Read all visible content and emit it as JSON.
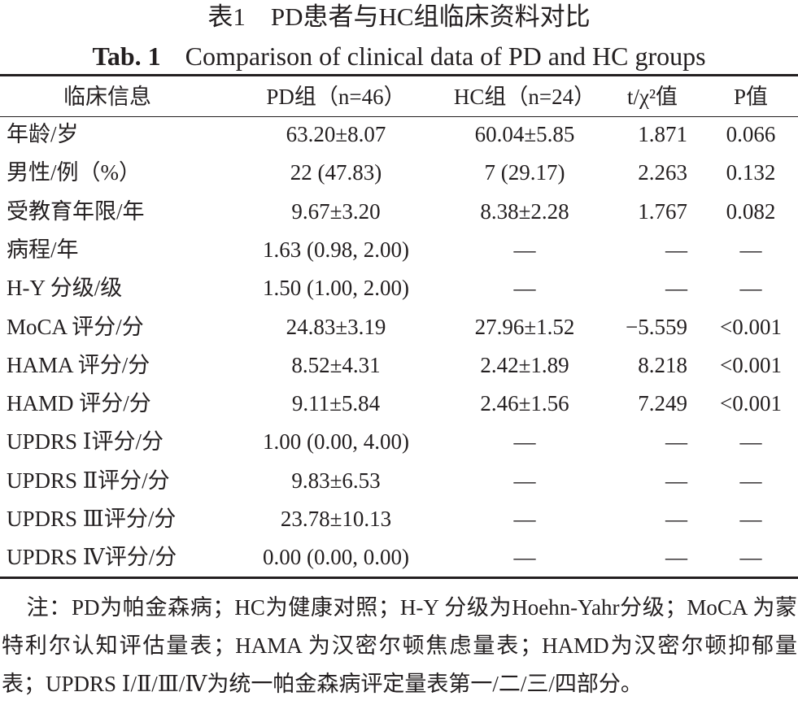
{
  "title": "表1　PD患者与HC组临床资料对比",
  "subtitle": {
    "label": "Tab. 1",
    "text": "Comparison of clinical data of PD and HC groups"
  },
  "table": {
    "headers": [
      "临床信息",
      "PD组（n=46）",
      "HC组（n=24）",
      "t/χ²值",
      "P值"
    ],
    "rows": [
      [
        "年龄/岁",
        "63.20±8.07",
        "60.04±5.85",
        "1.871",
        "0.066"
      ],
      [
        "男性/例（%）",
        "22 (47.83)",
        "7 (29.17)",
        "2.263",
        "0.132"
      ],
      [
        "受教育年限/年",
        "9.67±3.20",
        "8.38±2.28",
        "1.767",
        "0.082"
      ],
      [
        "病程/年",
        "1.63 (0.98, 2.00)",
        "—",
        "—",
        "—"
      ],
      [
        "H-Y 分级/级",
        "1.50 (1.00, 2.00)",
        "—",
        "—",
        "—"
      ],
      [
        "MoCA 评分/分",
        "24.83±3.19",
        "27.96±1.52",
        "−5.559",
        "<0.001"
      ],
      [
        "HAMA 评分/分",
        "8.52±4.31",
        "2.42±1.89",
        "8.218",
        "<0.001"
      ],
      [
        "HAMD 评分/分",
        "9.11±5.84",
        "2.46±1.56",
        "7.249",
        "<0.001"
      ],
      [
        "UPDRS Ⅰ评分/分",
        "1.00 (0.00, 4.00)",
        "—",
        "—",
        "—"
      ],
      [
        "UPDRS Ⅱ评分/分",
        "9.83±6.53",
        "—",
        "—",
        "—"
      ],
      [
        "UPDRS Ⅲ评分/分",
        "23.78±10.13",
        "—",
        "—",
        "—"
      ],
      [
        "UPDRS Ⅳ评分/分",
        "0.00 (0.00, 0.00)",
        "—",
        "—",
        "—"
      ]
    ]
  },
  "note": "注：PD为帕金森病；HC为健康对照；H-Y 分级为Hoehn-Yahr分级；MoCA 为蒙特利尔认知评估量表；HAMA 为汉密尔顿焦虑量表；HAMD为汉密尔顿抑郁量表；UPDRS Ⅰ/Ⅱ/Ⅲ/Ⅳ为统一帕金森病评定量表第一/二/三/四部分。"
}
